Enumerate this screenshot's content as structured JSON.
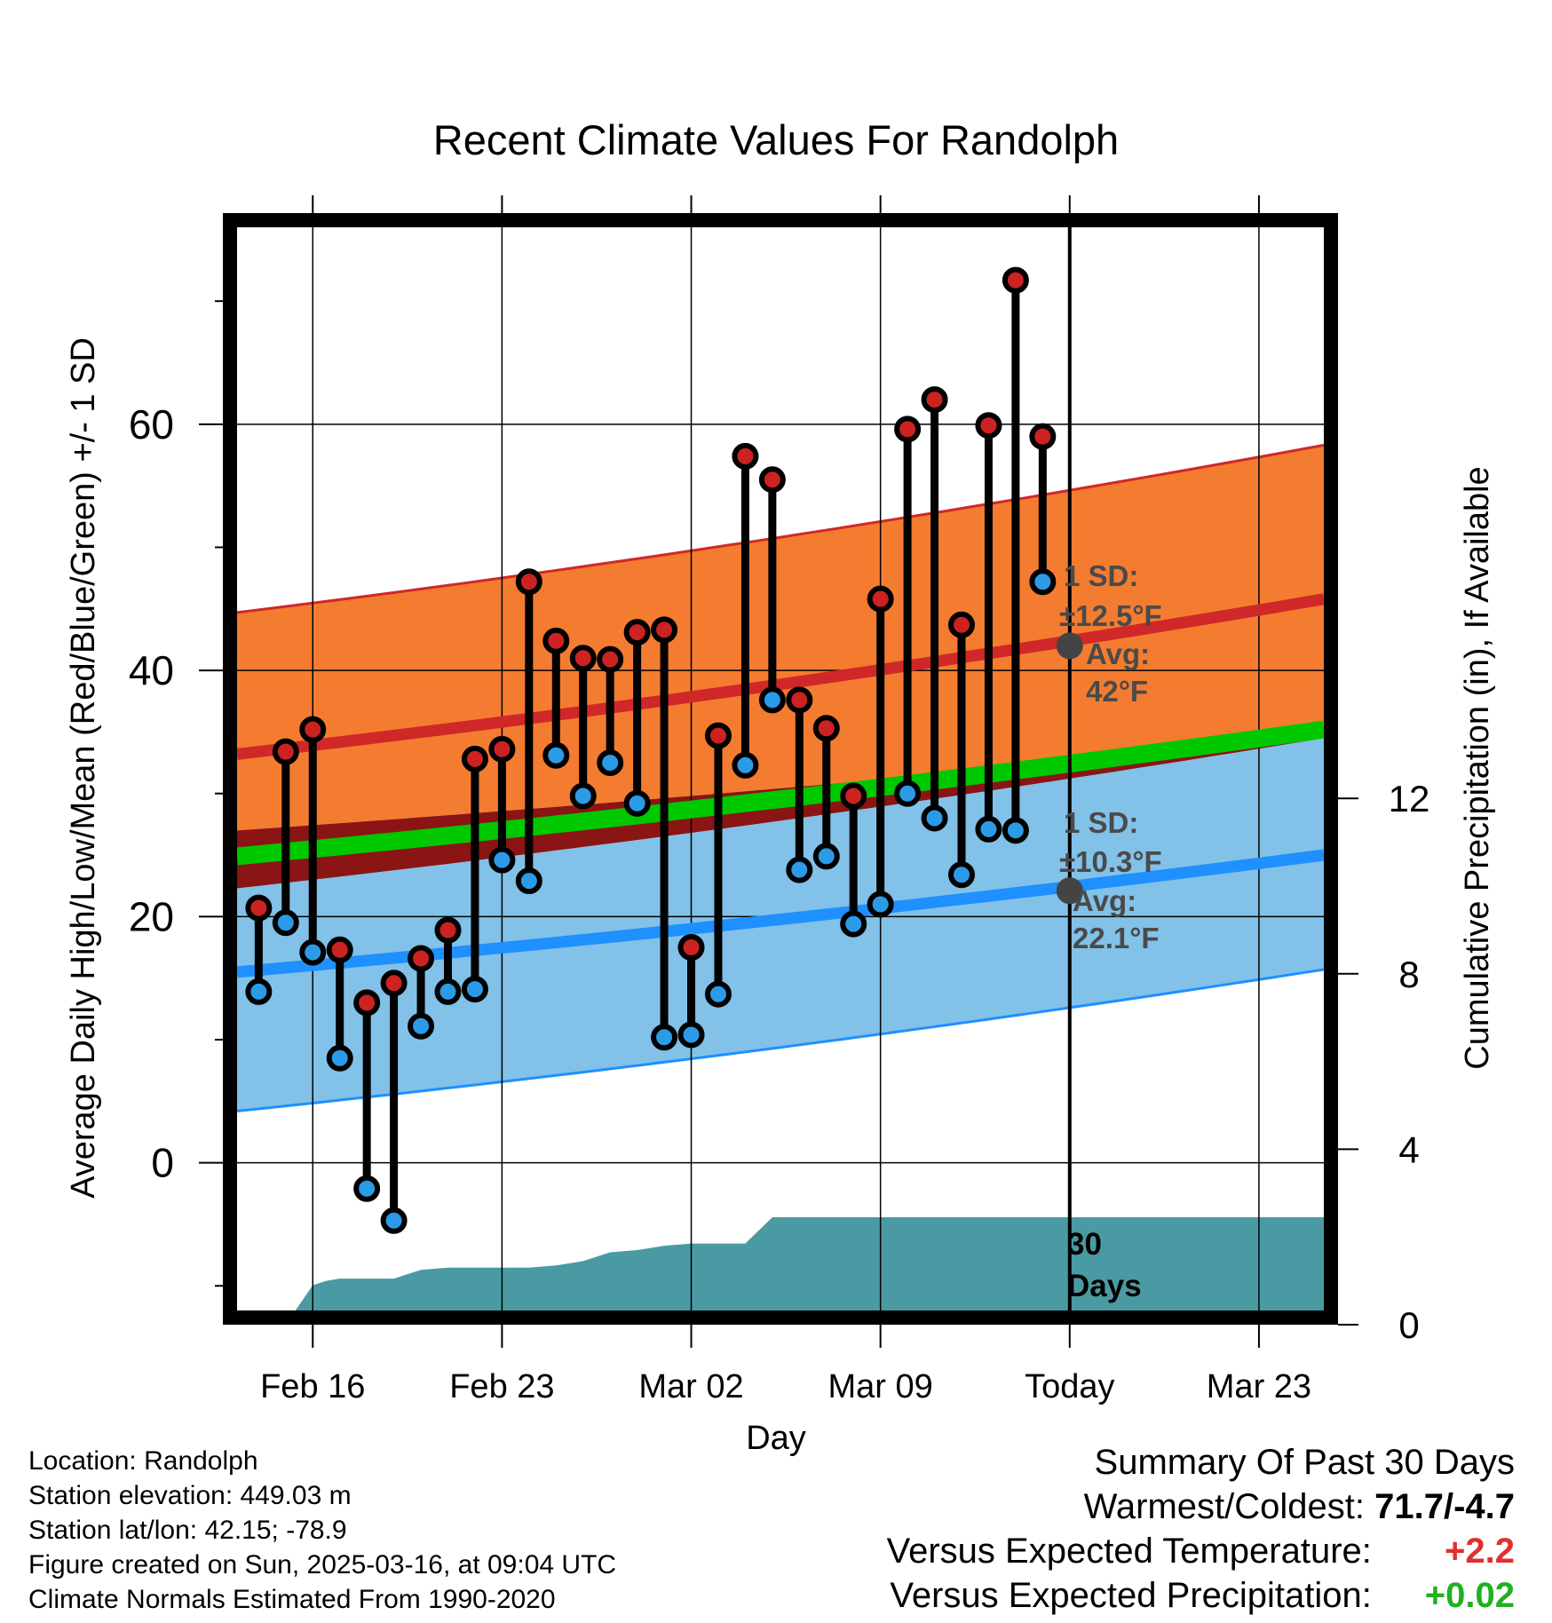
{
  "chart_data": {
    "type": "line",
    "title": "Recent Climate Values For Randolph",
    "xlabel": "Day",
    "ylabel": "Average Daily High/Low/Mean (Red/Blue/Green) +/- 1 SD",
    "y2label": "Cumulative Precipitation (in), If Available",
    "x_tick_labels": [
      "Feb 16",
      "Feb 23",
      "Mar 02",
      "Mar 09",
      "Today",
      "Mar 23"
    ],
    "x_tick_days": [
      1,
      8,
      15,
      22,
      29,
      36
    ],
    "xlim_days": [
      -1.8,
      38.4
    ],
    "ylim": [
      -12,
      76
    ],
    "y_ticks": [
      0,
      20,
      40,
      60
    ],
    "y2lim": [
      0,
      24
    ],
    "y2_ticks": [
      0,
      4,
      8,
      12
    ],
    "grid": true,
    "today_day": 29,
    "normals": {
      "days": [
        -1.8,
        38.4
      ],
      "high_mean": [
        33.2,
        45.8
      ],
      "high_sd_upper": [
        44.7,
        58.3
      ],
      "high_sd_lower": [
        27.0,
        34.6
      ],
      "low_mean": [
        15.5,
        25.0
      ],
      "low_sd_upper": [
        22.3,
        34.5
      ],
      "low_sd_lower": [
        4.2,
        15.7
      ],
      "mean": [
        24.9,
        35.2
      ]
    },
    "today_high_avg": {
      "day": 29,
      "value": 42
    },
    "today_low_avg": {
      "day": 29,
      "value": 22.1
    },
    "annotation_high": {
      "sd_label": "1 SD:",
      "sd_value": "±12.5°F",
      "avg_label": "Avg:",
      "avg_value": "42°F"
    },
    "annotation_low": {
      "sd_label": "1 SD:",
      "sd_value": "±10.3°F",
      "avg_label": "Avg:",
      "avg_value": "22.1°F"
    },
    "today_label_line1": "30",
    "today_label_line2": "Days",
    "series": [
      {
        "name": "High",
        "color": "#cc2222",
        "days": [
          -1,
          0,
          1,
          2,
          3,
          4,
          5,
          6,
          7,
          8,
          9,
          10,
          11,
          12,
          13,
          14,
          15,
          16,
          17,
          18,
          19,
          20,
          21,
          22,
          23,
          24,
          25,
          26,
          27,
          28
        ],
        "values": [
          20.7,
          33.4,
          35.2,
          17.3,
          13.0,
          14.6,
          16.6,
          18.9,
          32.8,
          33.6,
          47.2,
          42.4,
          41.0,
          40.9,
          43.1,
          43.3,
          17.5,
          34.7,
          57.4,
          55.5,
          37.6,
          35.3,
          29.8,
          45.8,
          59.6,
          62.0,
          43.7,
          59.9,
          71.7,
          59.0
        ]
      },
      {
        "name": "Low",
        "color": "#2b9be8",
        "days": [
          -1,
          0,
          1,
          2,
          3,
          4,
          5,
          6,
          7,
          8,
          9,
          10,
          11,
          12,
          13,
          14,
          15,
          16,
          17,
          18,
          19,
          20,
          21,
          22,
          23,
          24,
          25,
          26,
          27,
          28
        ],
        "values": [
          13.9,
          19.5,
          17.1,
          8.5,
          -2.1,
          -4.7,
          11.1,
          13.9,
          14.1,
          24.6,
          22.9,
          33.1,
          29.8,
          32.5,
          29.2,
          10.2,
          10.4,
          13.7,
          32.3,
          37.6,
          23.8,
          24.9,
          19.4,
          21.0,
          30.0,
          28.0,
          23.4,
          27.1,
          27.0,
          47.2
        ]
      }
    ],
    "precipitation": {
      "days": [
        -1,
        0,
        1,
        1.5,
        2,
        3,
        4,
        5,
        6,
        7,
        8,
        9,
        10,
        11,
        12,
        13,
        14,
        15,
        16,
        17,
        18,
        19,
        20,
        28,
        38.4
      ],
      "cumulative": [
        0,
        0,
        0.9,
        1.0,
        1.05,
        1.05,
        1.05,
        1.25,
        1.3,
        1.3,
        1.3,
        1.3,
        1.35,
        1.45,
        1.65,
        1.7,
        1.8,
        1.85,
        1.85,
        1.85,
        2.45,
        2.45,
        2.45,
        2.45,
        2.45
      ]
    }
  },
  "footer": {
    "location": "Location: Randolph",
    "elevation": "Station elevation: 449.03 m",
    "latlon": "Station lat/lon: 42.15; -78.9",
    "created": "Figure created on Sun, 2025-03-16, at 09:04 UTC",
    "normals": "Climate Normals Estimated From 1990-2020"
  },
  "summary": {
    "title": "Summary Of Past 30 Days",
    "warmest_label": "Warmest/Coldest:",
    "warmest_value": "71.7/-4.7",
    "temp_label": "Versus Expected Temperature:",
    "temp_value": "+2.2",
    "prcp_label": "Versus Expected Precipitation:",
    "prcp_value": "+0.02"
  },
  "colors": {
    "high_band": "#f47c30",
    "low_band": "#82c1e8",
    "overlap_band": "#8b1414",
    "mean_line": "#00c800",
    "high_line": "#d02828",
    "low_line": "#1e90ff",
    "precip": "#4a9aa3"
  }
}
